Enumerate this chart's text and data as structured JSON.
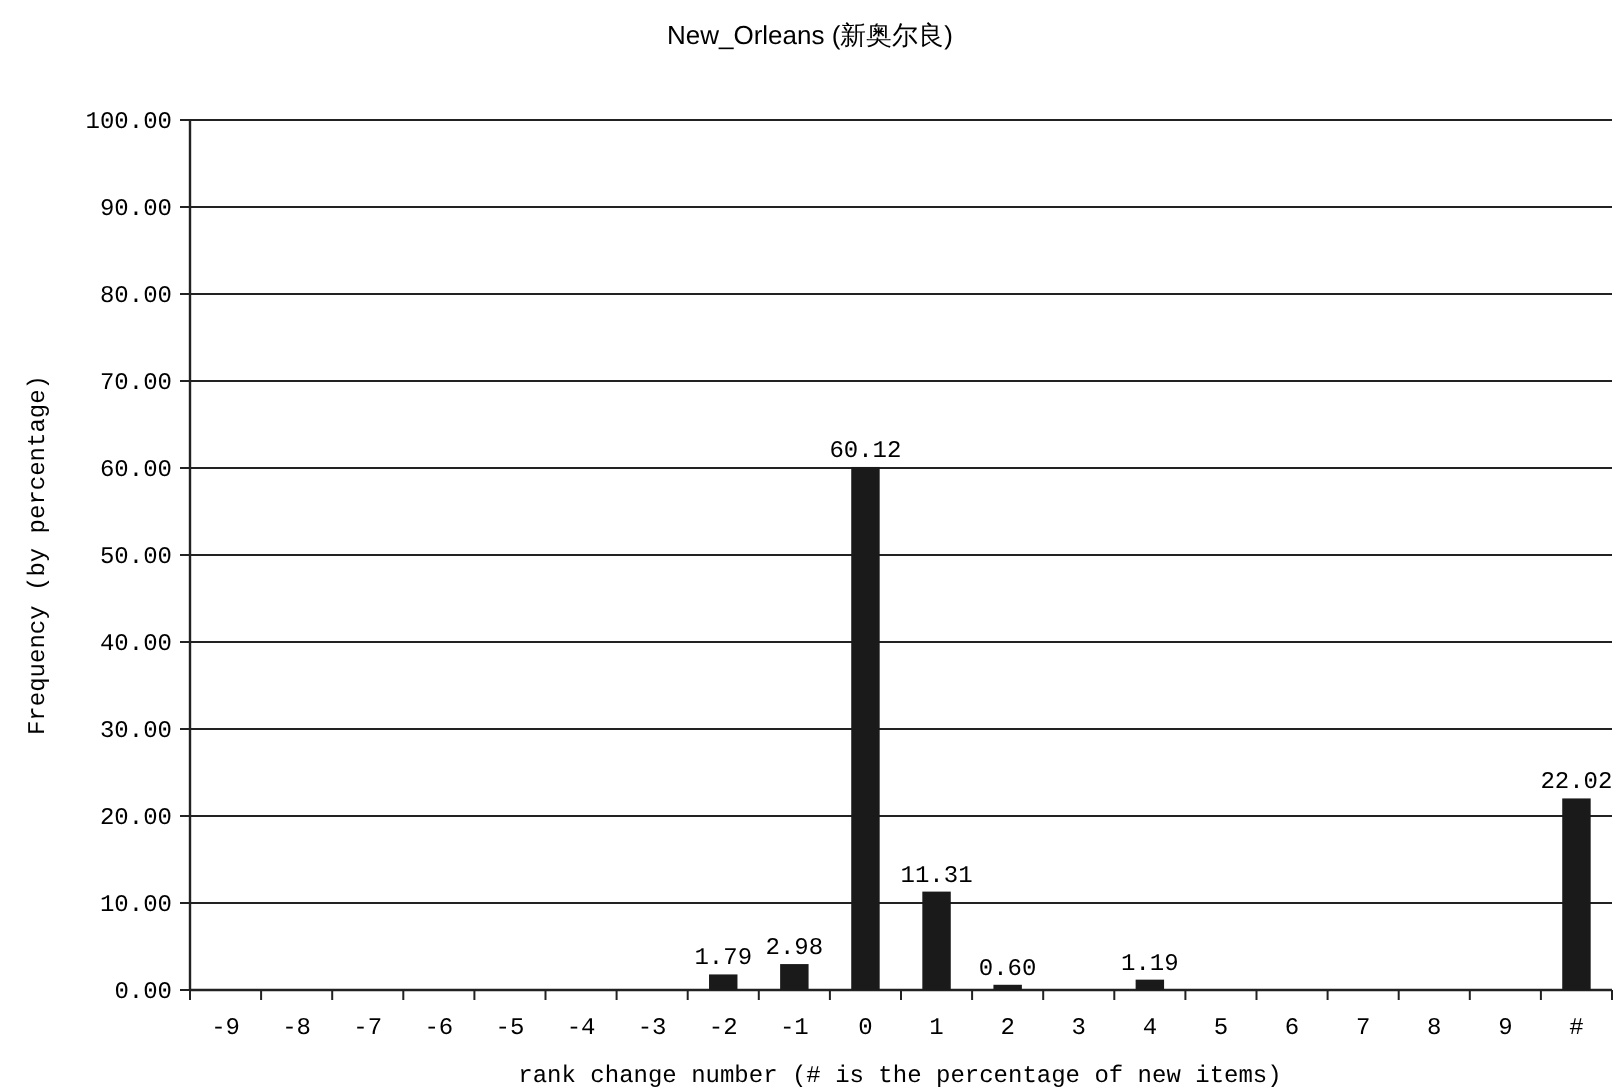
{
  "chart_data": {
    "type": "bar",
    "title": "New_Orleans (新奥尔良)",
    "xlabel": "rank change number (# is the percentage of new items)",
    "ylabel": "Frequency (by percentage)",
    "categories": [
      "-9",
      "-8",
      "-7",
      "-6",
      "-5",
      "-4",
      "-3",
      "-2",
      "-1",
      "0",
      "1",
      "2",
      "3",
      "4",
      "5",
      "6",
      "7",
      "8",
      "9",
      "#"
    ],
    "values": [
      0,
      0,
      0,
      0,
      0,
      0,
      0,
      1.79,
      2.98,
      60.12,
      11.31,
      0.6,
      0,
      1.19,
      0,
      0,
      0,
      0,
      0,
      22.02
    ],
    "value_labels": [
      null,
      null,
      null,
      null,
      null,
      null,
      null,
      "1.79",
      "2.98",
      "60.12",
      "11.31",
      "0.60",
      null,
      "1.19",
      null,
      null,
      null,
      null,
      null,
      "22.02"
    ],
    "color": "#1a1a1a",
    "ylim": [
      0,
      100
    ],
    "yticks": [
      {
        "value": 0,
        "label": "0.00"
      },
      {
        "value": 10,
        "label": "10.00"
      },
      {
        "value": 20,
        "label": "20.00"
      },
      {
        "value": 30,
        "label": "30.00"
      },
      {
        "value": 40,
        "label": "40.00"
      },
      {
        "value": 50,
        "label": "50.00"
      },
      {
        "value": 60,
        "label": "60.00"
      },
      {
        "value": 70,
        "label": "70.00"
      },
      {
        "value": 80,
        "label": "80.00"
      },
      {
        "value": 90,
        "label": "90.00"
      },
      {
        "value": 100,
        "label": "100.00"
      }
    ],
    "grid": "y"
  }
}
